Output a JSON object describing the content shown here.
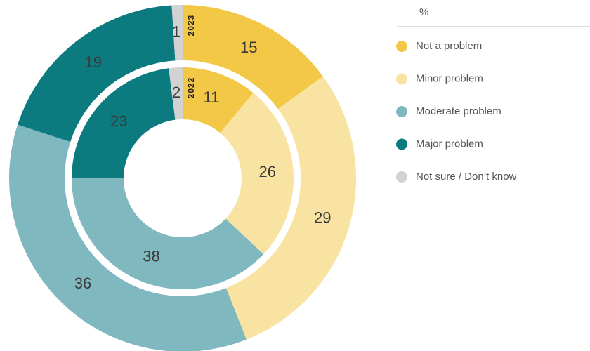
{
  "chart_data": {
    "type": "donut",
    "legend_title": "%",
    "categories": [
      "Not a problem",
      "Minor problem",
      "Moderate problem",
      "Major problem",
      "Not sure / Don’t know"
    ],
    "colors": [
      "#f4c847",
      "#f9e3a2",
      "#80b8c0",
      "#0b7b80",
      "#d2d2d2"
    ],
    "series": [
      {
        "name": "2023",
        "values": [
          15,
          29,
          36,
          19,
          1
        ]
      },
      {
        "name": "2022",
        "values": [
          11,
          26,
          38,
          23,
          2
        ]
      }
    ]
  }
}
